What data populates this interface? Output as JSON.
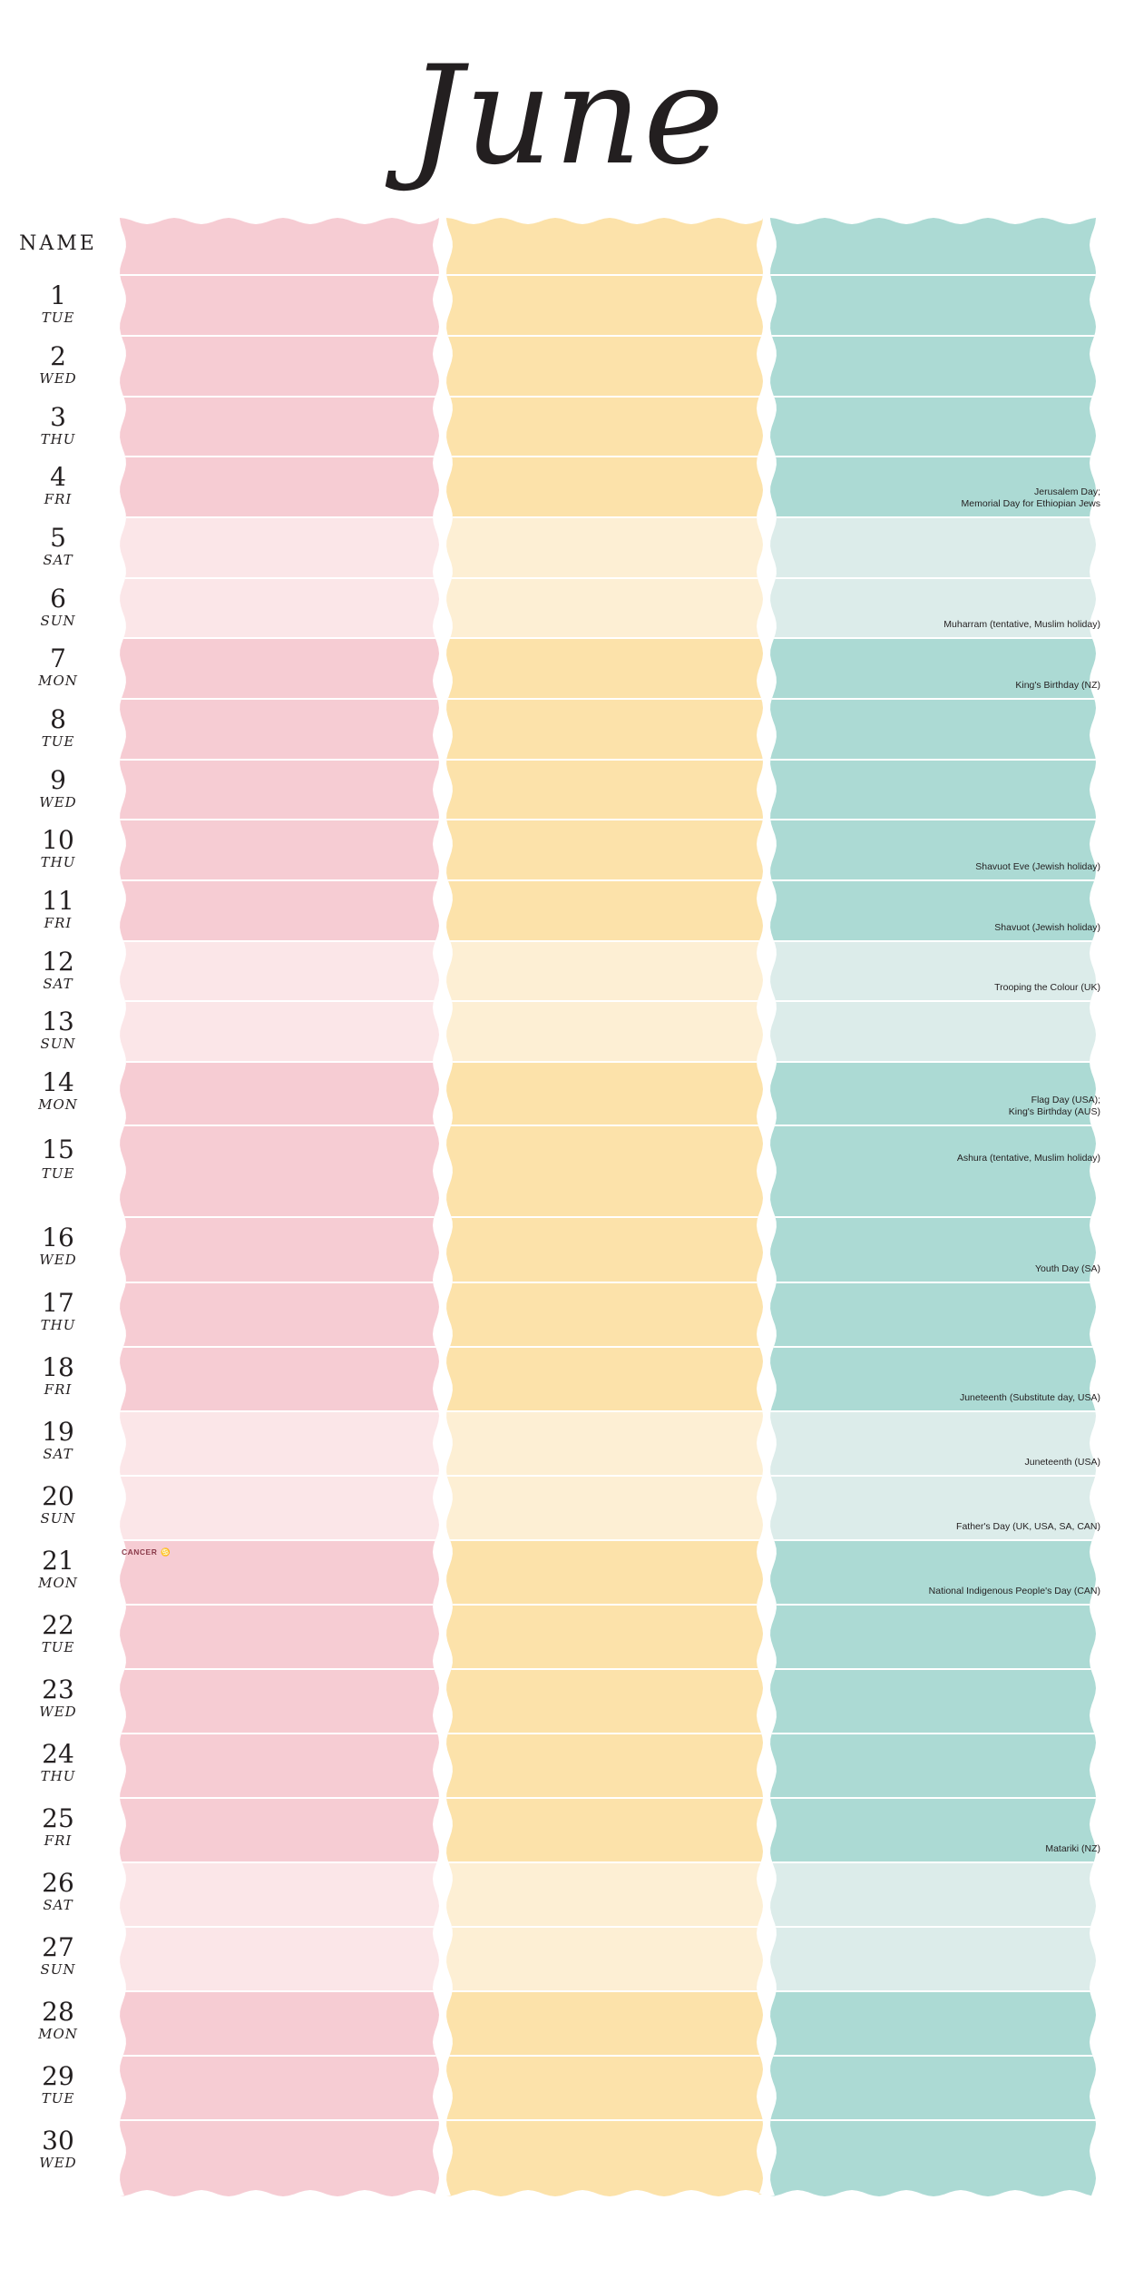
{
  "month": "June",
  "name_label": "NAME",
  "columns": [
    {
      "name": "pink",
      "weekday": "#f6ccd3",
      "weekend": "#fbe6e8"
    },
    {
      "name": "yellow",
      "weekday": "#fce2aa",
      "weekend": "#fdefd4"
    },
    {
      "name": "teal",
      "weekday": "#acdad4",
      "weekend": "#dcecea"
    }
  ],
  "days": [
    {
      "num": "1",
      "wd": "TUE",
      "weekend": false,
      "holiday": ""
    },
    {
      "num": "2",
      "wd": "WED",
      "weekend": false,
      "holiday": ""
    },
    {
      "num": "3",
      "wd": "THU",
      "weekend": false,
      "holiday": ""
    },
    {
      "num": "4",
      "wd": "FRI",
      "weekend": false,
      "holiday": "Jerusalem Day;\nMemorial Day for Ethiopian Jews"
    },
    {
      "num": "5",
      "wd": "SAT",
      "weekend": true,
      "holiday": ""
    },
    {
      "num": "6",
      "wd": "SUN",
      "weekend": true,
      "holiday": "Muharram (tentative, Muslim holiday)"
    },
    {
      "num": "7",
      "wd": "MON",
      "weekend": false,
      "holiday": "King's Birthday (NZ)"
    },
    {
      "num": "8",
      "wd": "TUE",
      "weekend": false,
      "holiday": ""
    },
    {
      "num": "9",
      "wd": "WED",
      "weekend": false,
      "holiday": ""
    },
    {
      "num": "10",
      "wd": "THU",
      "weekend": false,
      "holiday": "Shavuot Eve (Jewish holiday)"
    },
    {
      "num": "11",
      "wd": "FRI",
      "weekend": false,
      "holiday": "Shavuot (Jewish holiday)"
    },
    {
      "num": "12",
      "wd": "SAT",
      "weekend": true,
      "holiday": "Trooping the Colour (UK)"
    },
    {
      "num": "13",
      "wd": "SUN",
      "weekend": true,
      "holiday": ""
    },
    {
      "num": "14",
      "wd": "MON",
      "weekend": false,
      "holiday": "Flag Day (USA);\nKing's Birthday (AUS)"
    },
    {
      "num": "15",
      "wd": "TUE",
      "weekend": false,
      "holiday": "Ashura (tentative, Muslim holiday)"
    },
    {
      "num": "16",
      "wd": "WED",
      "weekend": false,
      "holiday": "Youth Day (SA)"
    },
    {
      "num": "17",
      "wd": "THU",
      "weekend": false,
      "holiday": ""
    },
    {
      "num": "18",
      "wd": "FRI",
      "weekend": false,
      "holiday": "Juneteenth (Substitute day, USA)"
    },
    {
      "num": "19",
      "wd": "SAT",
      "weekend": true,
      "holiday": "Juneteenth (USA)"
    },
    {
      "num": "20",
      "wd": "SUN",
      "weekend": true,
      "holiday": "Father's Day (UK, USA, SA, CAN)"
    },
    {
      "num": "21",
      "wd": "MON",
      "weekend": false,
      "holiday": "National Indigenous People's Day (CAN)",
      "zodiac": "CANCER",
      "zodiac_symbol": "♋"
    },
    {
      "num": "22",
      "wd": "TUE",
      "weekend": false,
      "holiday": ""
    },
    {
      "num": "23",
      "wd": "WED",
      "weekend": false,
      "holiday": ""
    },
    {
      "num": "24",
      "wd": "THU",
      "weekend": false,
      "holiday": ""
    },
    {
      "num": "25",
      "wd": "FRI",
      "weekend": false,
      "holiday": "Matariki (NZ)"
    },
    {
      "num": "26",
      "wd": "SAT",
      "weekend": true,
      "holiday": ""
    },
    {
      "num": "27",
      "wd": "SUN",
      "weekend": true,
      "holiday": ""
    },
    {
      "num": "28",
      "wd": "MON",
      "weekend": false,
      "holiday": ""
    },
    {
      "num": "29",
      "wd": "TUE",
      "weekend": false,
      "holiday": ""
    },
    {
      "num": "30",
      "wd": "WED",
      "weekend": false,
      "holiday": ""
    }
  ]
}
